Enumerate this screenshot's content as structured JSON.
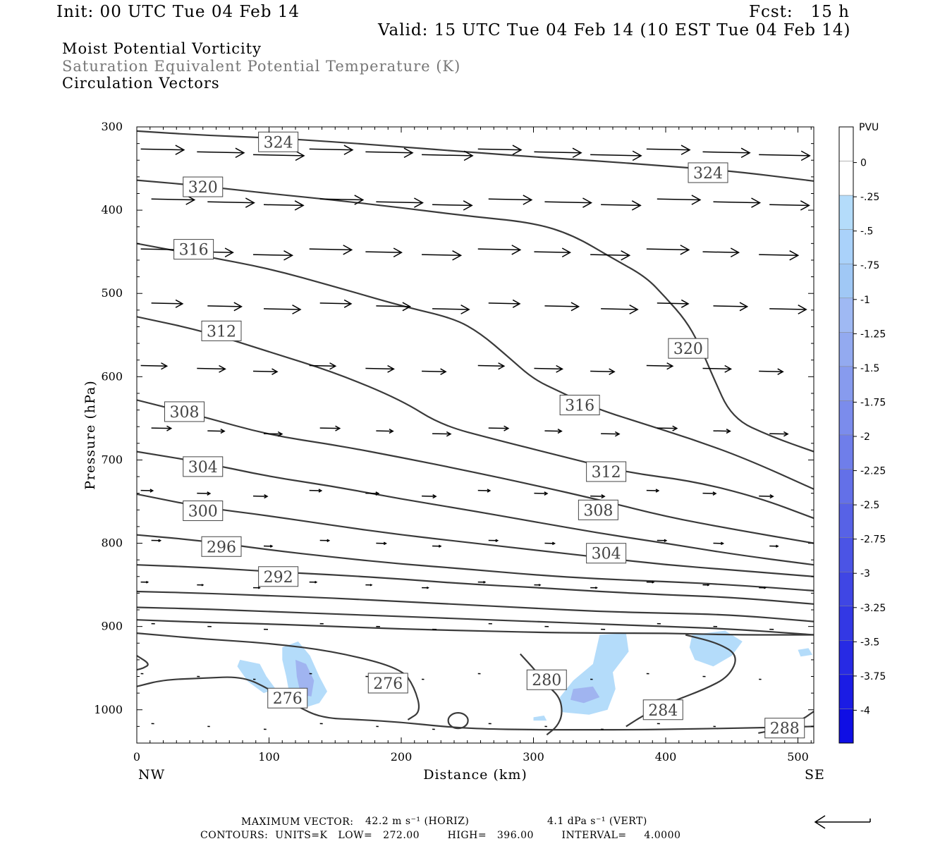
{
  "header": {
    "init": "Init: 00 UTC Tue 04 Feb 14",
    "fcst": "Fcst:   15 h",
    "valid": "Valid: 15 UTC Tue 04 Feb 14 (10 EST Tue 04 Feb 14)"
  },
  "legend": {
    "line1": "Moist Potential Vorticity",
    "line2": "Saturation Equivalent Potential Temperature (K)",
    "line3": "Circulation Vectors"
  },
  "footer": {
    "max_vector_label": "MAXIMUM VECTOR:",
    "max_horiz": "42.2 m s⁻¹ (HORIZ)",
    "max_vert": "4.1 dPa s⁻¹ (VERT)",
    "contours": "CONTOURS:  UNITS=K   LOW=   272.00        HIGH=   396.00        INTERVAL=     4.0000"
  },
  "colors": {
    "contour": "#3a3a3a",
    "pv_light": "#b4dcfa",
    "pv_mid": "#a0b4f0"
  },
  "chart_data": {
    "type": "contour-cross-section",
    "xlabel": "Distance (km)",
    "ylabel": "Pressure (hPa)",
    "xlim": [
      0,
      512
    ],
    "ylim": [
      1040,
      300
    ],
    "x_ticks": [
      "0",
      "100",
      "200",
      "300",
      "400",
      "500"
    ],
    "y_ticks": [
      "300",
      "400",
      "500",
      "600",
      "700",
      "800",
      "900",
      "1000"
    ],
    "x_end_labels": {
      "left": "NW",
      "right": "SE"
    },
    "colorbar": {
      "unit": "PVU",
      "labels": [
        "0",
        "-.25",
        "-.5",
        "-.75",
        "-1",
        "-1.25",
        "-1.5",
        "-1.75",
        "-2",
        "-2.25",
        "-2.5",
        "-2.75",
        "-3",
        "-3.25",
        "-3.5",
        "-3.75",
        "-4"
      ],
      "colors": [
        "#ffffff",
        "#ffffff",
        "#b4dcfa",
        "#aad2fa",
        "#a0c8f5",
        "#9fb9f3",
        "#93aaf0",
        "#879bee",
        "#7b8cec",
        "#6f7eea",
        "#6370e8",
        "#5762e6",
        "#4b54e5",
        "#3f46e4",
        "#3338e4",
        "#272ae4",
        "#1b1ce4",
        "#0f0ee4"
      ]
    },
    "contours": [
      {
        "value": 324,
        "label": "324",
        "points": [
          [
            0,
            305
          ],
          [
            50,
            310
          ],
          [
            100,
            313
          ],
          [
            150,
            318
          ],
          [
            200,
            324
          ],
          [
            250,
            330
          ],
          [
            300,
            336
          ],
          [
            350,
            341
          ],
          [
            400,
            347
          ],
          [
            450,
            353
          ],
          [
            512,
            365
          ]
        ],
        "labels_at": [
          [
            107,
            318
          ],
          [
            432,
            355
          ]
        ]
      },
      {
        "value": 320,
        "label": "320",
        "points": [
          [
            0,
            364
          ],
          [
            50,
            371
          ],
          [
            100,
            380
          ],
          [
            150,
            388
          ],
          [
            200,
            397
          ],
          [
            250,
            407
          ],
          [
            300,
            415
          ],
          [
            330,
            430
          ],
          [
            360,
            458
          ],
          [
            385,
            480
          ],
          [
            400,
            505
          ],
          [
            415,
            532
          ],
          [
            425,
            560
          ],
          [
            435,
            597
          ],
          [
            450,
            650
          ],
          [
            480,
            672
          ],
          [
            512,
            690
          ]
        ],
        "labels_at": [
          [
            50,
            372
          ],
          [
            417,
            566
          ]
        ]
      },
      {
        "value": 316,
        "label": "316",
        "points": [
          [
            0,
            440
          ],
          [
            50,
            455
          ],
          [
            100,
            470
          ],
          [
            150,
            492
          ],
          [
            200,
            515
          ],
          [
            240,
            530
          ],
          [
            260,
            548
          ],
          [
            280,
            575
          ],
          [
            300,
            603
          ],
          [
            320,
            618
          ],
          [
            345,
            637
          ],
          [
            380,
            655
          ],
          [
            420,
            675
          ],
          [
            460,
            698
          ],
          [
            512,
            735
          ]
        ],
        "labels_at": [
          [
            43,
            447
          ],
          [
            335,
            634
          ]
        ]
      },
      {
        "value": 312,
        "label": "312",
        "points": [
          [
            0,
            528
          ],
          [
            50,
            545
          ],
          [
            100,
            570
          ],
          [
            150,
            595
          ],
          [
            200,
            628
          ],
          [
            230,
            658
          ],
          [
            270,
            675
          ],
          [
            320,
            695
          ],
          [
            370,
            715
          ],
          [
            420,
            725
          ],
          [
            470,
            745
          ],
          [
            512,
            770
          ]
        ],
        "labels_at": [
          [
            64,
            545
          ],
          [
            355,
            714
          ]
        ]
      },
      {
        "value": 308,
        "label": "308",
        "points": [
          [
            0,
            628
          ],
          [
            50,
            648
          ],
          [
            100,
            670
          ],
          [
            150,
            682
          ],
          [
            200,
            697
          ],
          [
            250,
            713
          ],
          [
            300,
            730
          ],
          [
            350,
            748
          ],
          [
            400,
            768
          ],
          [
            450,
            783
          ],
          [
            512,
            800
          ]
        ],
        "labels_at": [
          [
            36,
            642
          ],
          [
            349,
            760
          ]
        ]
      },
      {
        "value": 304,
        "label": "304",
        "points": [
          [
            0,
            690
          ],
          [
            50,
            703
          ],
          [
            100,
            720
          ],
          [
            150,
            732
          ],
          [
            200,
            747
          ],
          [
            250,
            760
          ],
          [
            300,
            774
          ],
          [
            350,
            788
          ],
          [
            400,
            800
          ],
          [
            450,
            813
          ],
          [
            512,
            826
          ]
        ],
        "labels_at": [
          [
            50,
            708
          ],
          [
            355,
            812
          ]
        ]
      },
      {
        "value": 300,
        "label": "300",
        "points": [
          [
            0,
            741
          ],
          [
            50,
            757
          ],
          [
            100,
            767
          ],
          [
            150,
            779
          ],
          [
            200,
            790
          ],
          [
            250,
            799
          ],
          [
            300,
            808
          ],
          [
            350,
            817
          ],
          [
            400,
            826
          ],
          [
            450,
            832
          ],
          [
            512,
            840
          ]
        ],
        "labels_at": [
          [
            50,
            761
          ]
        ]
      },
      {
        "value": 296,
        "label": "296",
        "points": [
          [
            0,
            790
          ],
          [
            50,
            797
          ],
          [
            100,
            808
          ],
          [
            150,
            817
          ],
          [
            200,
            825
          ],
          [
            250,
            831
          ],
          [
            300,
            838
          ],
          [
            350,
            843
          ],
          [
            400,
            846
          ],
          [
            450,
            850
          ],
          [
            512,
            857
          ]
        ],
        "labels_at": [
          [
            64,
            804
          ]
        ]
      },
      {
        "value": 292,
        "label": "292",
        "points": [
          [
            0,
            826
          ],
          [
            50,
            829
          ],
          [
            100,
            834
          ],
          [
            150,
            838
          ],
          [
            200,
            843
          ],
          [
            250,
            849
          ],
          [
            300,
            853
          ],
          [
            350,
            858
          ],
          [
            400,
            862
          ],
          [
            450,
            865
          ],
          [
            512,
            873
          ]
        ],
        "labels_at": [
          [
            107,
            840
          ]
        ]
      },
      {
        "value": 288,
        "label": "288",
        "points": [
          [
            0,
            858
          ],
          [
            50,
            860
          ],
          [
            100,
            863
          ],
          [
            150,
            866
          ],
          [
            200,
            870
          ],
          [
            250,
            874
          ],
          [
            300,
            878
          ],
          [
            350,
            882
          ],
          [
            400,
            884
          ],
          [
            450,
            886
          ],
          [
            512,
            894
          ]
        ],
        "labels_at": [
          [
            490,
            1022
          ]
        ]
      },
      {
        "value": 284,
        "label": "284",
        "points": [
          [
            0,
            877
          ],
          [
            50,
            879
          ],
          [
            100,
            882
          ],
          [
            150,
            885
          ],
          [
            200,
            888
          ],
          [
            250,
            891
          ],
          [
            300,
            894
          ],
          [
            350,
            897
          ],
          [
            400,
            900
          ],
          [
            450,
            903
          ],
          [
            512,
            910
          ]
        ],
        "labels_at": [
          [
            398,
            1000
          ]
        ]
      },
      {
        "value": 280,
        "label": "280",
        "points": [
          [
            0,
            892
          ],
          [
            50,
            895
          ],
          [
            100,
            897
          ],
          [
            150,
            900
          ],
          [
            200,
            903
          ],
          [
            250,
            905
          ],
          [
            300,
            907
          ],
          [
            350,
            908
          ],
          [
            400,
            908
          ],
          [
            450,
            910
          ],
          [
            512,
            910
          ]
        ],
        "labels_at": [
          [
            310,
            964
          ]
        ]
      },
      {
        "value": 276,
        "label": "276",
        "points": [
          [
            0,
            908
          ],
          [
            50,
            915
          ],
          [
            100,
            920
          ],
          [
            150,
            930
          ],
          [
            200,
            950
          ],
          [
            210,
            973
          ],
          [
            215,
            1002
          ],
          [
            205,
            1012
          ]
        ],
        "labels_at": [
          [
            190,
            968
          ],
          [
            114,
            986
          ]
        ]
      }
    ],
    "max_vector": {
      "horiz": 42.2,
      "horiz_unit": "m s⁻¹",
      "vert": 4.1,
      "vert_unit": "dPa s⁻¹"
    },
    "contour_levels": {
      "units": "K",
      "low": 272.0,
      "high": 396.0,
      "interval": 4.0
    }
  }
}
